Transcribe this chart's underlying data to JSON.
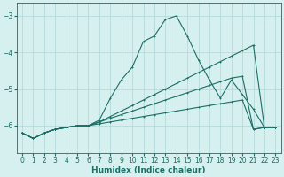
{
  "xlabel": "Humidex (Indice chaleur)",
  "ylabel": "",
  "bg_color": "#d6f0f0",
  "grid_color": "#b8dada",
  "line_color": "#1a6e64",
  "xlim": [
    -0.5,
    23.5
  ],
  "ylim": [
    -6.75,
    -2.65
  ],
  "yticks": [
    -6,
    -5,
    -4,
    -3
  ],
  "xticks": [
    0,
    1,
    2,
    3,
    4,
    5,
    6,
    7,
    8,
    9,
    10,
    11,
    12,
    13,
    14,
    15,
    16,
    17,
    18,
    19,
    20,
    21,
    22,
    23
  ],
  "series": [
    {
      "x": [
        0,
        1,
        2,
        3,
        4,
        5,
        6,
        7,
        8,
        9,
        10,
        11,
        12,
        13,
        14,
        15,
        16,
        17,
        18,
        19,
        20,
        21,
        22,
        23
      ],
      "y": [
        -6.2,
        -6.35,
        -6.2,
        -6.1,
        -6.05,
        -6.0,
        -6.0,
        -5.85,
        -5.25,
        -4.75,
        -4.4,
        -3.7,
        -3.55,
        -3.1,
        -3.0,
        -3.55,
        -4.2,
        -4.75,
        -5.25,
        -4.75,
        -5.15,
        -5.55,
        -6.05,
        -6.05
      ]
    },
    {
      "x": [
        0,
        1,
        2,
        3,
        4,
        5,
        6,
        7,
        8,
        9,
        10,
        11,
        12,
        13,
        14,
        15,
        16,
        17,
        18,
        19,
        20,
        21,
        22,
        23
      ],
      "y": [
        -6.2,
        -6.35,
        -6.2,
        -6.1,
        -6.05,
        -6.0,
        -6.0,
        -5.9,
        -5.75,
        -5.6,
        -5.45,
        -5.3,
        -5.15,
        -5.0,
        -4.85,
        -4.7,
        -4.55,
        -4.4,
        -4.25,
        -4.1,
        -3.95,
        -3.8,
        -6.05,
        -6.05
      ]
    },
    {
      "x": [
        0,
        1,
        2,
        3,
        4,
        5,
        6,
        7,
        8,
        9,
        10,
        11,
        12,
        13,
        14,
        15,
        16,
        17,
        18,
        19,
        20,
        21,
        22,
        23
      ],
      "y": [
        -6.2,
        -6.35,
        -6.2,
        -6.1,
        -6.05,
        -6.0,
        -6.0,
        -5.9,
        -5.8,
        -5.7,
        -5.6,
        -5.5,
        -5.4,
        -5.3,
        -5.2,
        -5.1,
        -5.0,
        -4.9,
        -4.8,
        -4.7,
        -4.65,
        -6.1,
        -6.05,
        -6.05
      ]
    },
    {
      "x": [
        0,
        1,
        2,
        3,
        4,
        5,
        6,
        7,
        8,
        9,
        10,
        11,
        12,
        13,
        14,
        15,
        16,
        17,
        18,
        19,
        20,
        21,
        22,
        23
      ],
      "y": [
        -6.2,
        -6.35,
        -6.2,
        -6.1,
        -6.05,
        -6.0,
        -6.0,
        -5.95,
        -5.9,
        -5.85,
        -5.8,
        -5.75,
        -5.7,
        -5.65,
        -5.6,
        -5.55,
        -5.5,
        -5.45,
        -5.4,
        -5.35,
        -5.3,
        -6.1,
        -6.05,
        -6.05
      ]
    }
  ]
}
